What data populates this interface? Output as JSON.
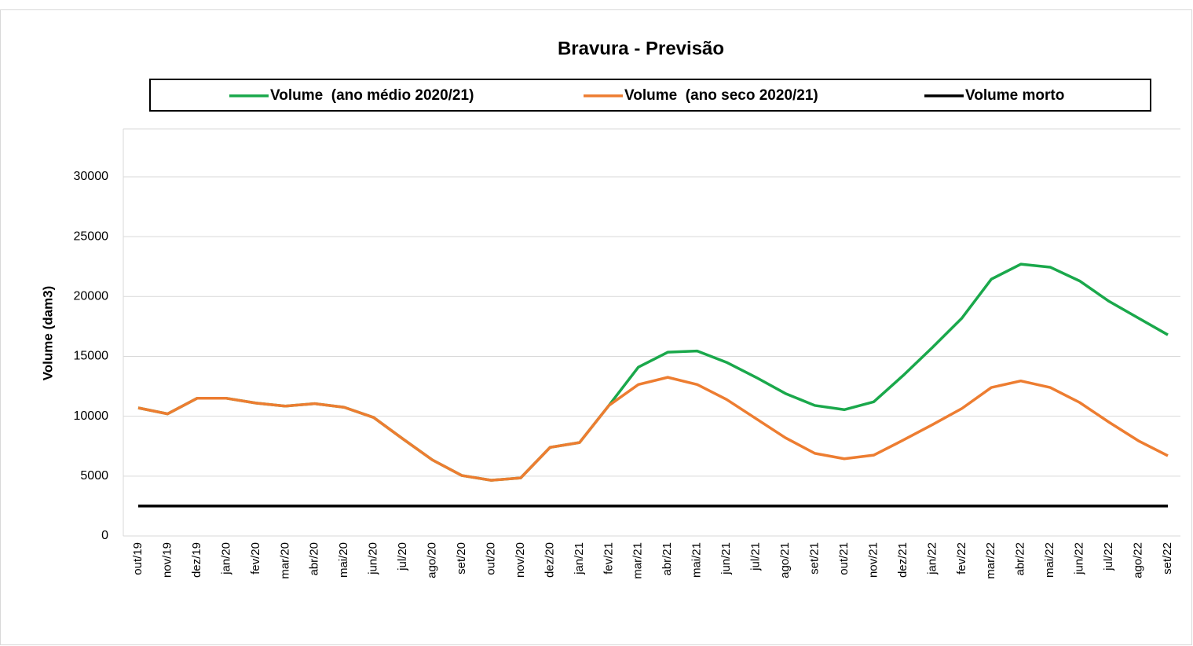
{
  "chart_data": {
    "type": "line",
    "title": "Bravura - Previsão",
    "y_label": "Volume (dam3)",
    "categories": [
      "out/19",
      "nov/19",
      "dez/19",
      "jan/20",
      "fev/20",
      "mar/20",
      "abr/20",
      "mai/20",
      "jun/20",
      "jul/20",
      "ago/20",
      "set/20",
      "out/20",
      "nov/20",
      "dez/20",
      "jan/21",
      "fev/21",
      "mar/21",
      "abr/21",
      "mai/21",
      "jun/21",
      "jul/21",
      "ago/21",
      "set/21",
      "out/21",
      "nov/21",
      "dez/21",
      "jan/22",
      "fev/22",
      "mar/22",
      "abr/22",
      "mai/22",
      "jun/22",
      "jul/22",
      "ago/22",
      "set/22"
    ],
    "series": [
      {
        "name": "Volume  (ano médio 2020/21)",
        "color": "#1aa84b",
        "values": [
          10700,
          10200,
          11500,
          11500,
          11100,
          10850,
          11050,
          10750,
          9900,
          8100,
          6350,
          5050,
          4650,
          4850,
          7400,
          7800,
          10900,
          14100,
          15350,
          15450,
          14500,
          13250,
          11900,
          10900,
          10550,
          11200,
          13400,
          15750,
          18200,
          21450,
          22700,
          22450,
          21300,
          19600,
          18200,
          16800
        ]
      },
      {
        "name": "Volume  (ano seco 2020/21)",
        "color": "#ed7d31",
        "values": [
          10700,
          10200,
          11500,
          11500,
          11100,
          10850,
          11050,
          10750,
          9900,
          8100,
          6350,
          5050,
          4650,
          4850,
          7400,
          7800,
          10900,
          12650,
          13250,
          12650,
          11400,
          9800,
          8200,
          6900,
          6450,
          6750,
          8000,
          9300,
          10650,
          12400,
          12950,
          12400,
          11150,
          9500,
          7950,
          6700
        ]
      },
      {
        "name": "Volume morto",
        "color": "#000000",
        "values": [
          2500,
          2500,
          2500,
          2500,
          2500,
          2500,
          2500,
          2500,
          2500,
          2500,
          2500,
          2500,
          2500,
          2500,
          2500,
          2500,
          2500,
          2500,
          2500,
          2500,
          2500,
          2500,
          2500,
          2500,
          2500,
          2500,
          2500,
          2500,
          2500,
          2500,
          2500,
          2500,
          2500,
          2500,
          2500,
          2500
        ]
      }
    ],
    "ylim": [
      0,
      34000
    ],
    "yticks": [
      0,
      5000,
      10000,
      15000,
      20000,
      25000,
      30000
    ],
    "grid": true,
    "legend": "top"
  }
}
